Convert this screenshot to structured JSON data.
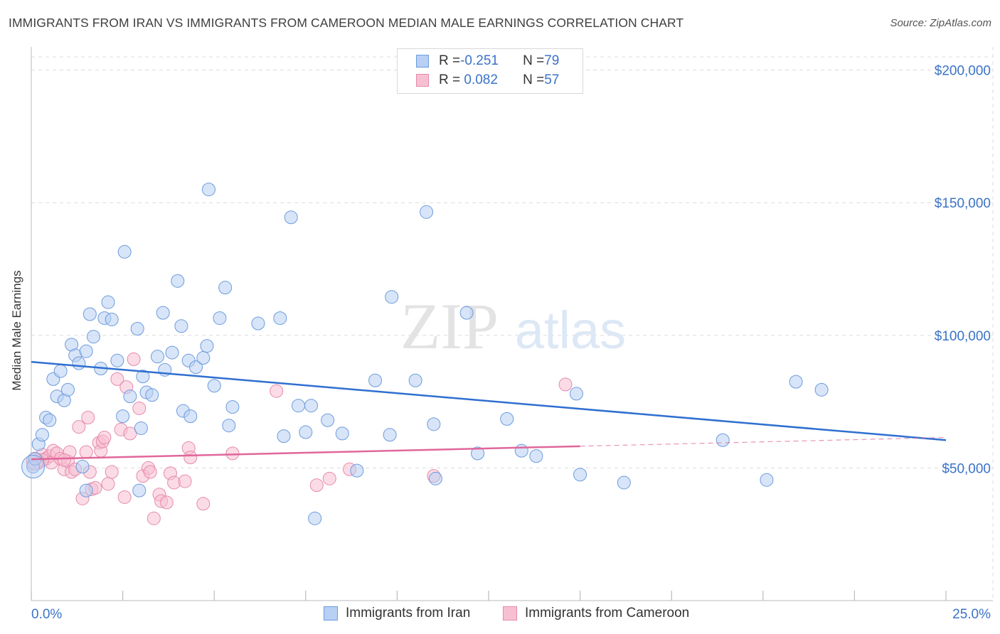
{
  "title": "IMMIGRANTS FROM IRAN VS IMMIGRANTS FROM CAMEROON MEDIAN MALE EARNINGS CORRELATION CHART",
  "source": "Source: ZipAtlas.com",
  "watermark": {
    "zip": "ZIP",
    "atlas": "atlas"
  },
  "legend": {
    "rows": [
      {
        "r_label": "R = ",
        "r_value": "-0.251",
        "n_label": "N = ",
        "n_value": "79"
      },
      {
        "r_label": "R = ",
        "r_value": " 0.082",
        "n_label": "N = ",
        "n_value": "57"
      }
    ]
  },
  "bottom_legend": {
    "iran": "Immigrants from Iran",
    "cameroon": "Immigrants from Cameroon"
  },
  "colors": {
    "iran_fill": "#b8d0f3",
    "iran_stroke": "#6b9bdd",
    "iran_line": "#2f6fd0",
    "cameroon_fill": "#f7c0d2",
    "cameroon_stroke": "#e58aaa",
    "cameroon_line": "#e0679a",
    "axis_text": "#3a73c8",
    "grid": "#dcdcdc"
  },
  "chart_data": {
    "type": "scatter",
    "title": "IMMIGRANTS FROM IRAN VS IMMIGRANTS FROM CAMEROON MEDIAN MALE EARNINGS CORRELATION CHART",
    "xlabel": "",
    "ylabel": "Median Male Earnings",
    "xlim": [
      0,
      25
    ],
    "ylim": [
      0,
      205000
    ],
    "x_tick_labels": [
      "0.0%",
      "25.0%"
    ],
    "y_ticks": [
      50000,
      100000,
      150000,
      200000
    ],
    "y_tick_labels": [
      "$50,000",
      "$100,000",
      "$150,000",
      "$200,000"
    ],
    "grid": true,
    "legend_position": "top-center",
    "series": [
      {
        "name": "Immigrants from Iran",
        "R": -0.251,
        "N": 79,
        "trend": {
          "x0": 0,
          "y0": 90000,
          "x1": 25,
          "y1": 60500
        },
        "points": [
          [
            0.05,
            50500
          ],
          [
            0.1,
            53500
          ],
          [
            0.2,
            59000
          ],
          [
            0.3,
            62500
          ],
          [
            0.4,
            69000
          ],
          [
            0.5,
            68000
          ],
          [
            0.6,
            83500
          ],
          [
            0.7,
            77000
          ],
          [
            0.8,
            86500
          ],
          [
            0.9,
            75500
          ],
          [
            1.0,
            79500
          ],
          [
            1.1,
            96500
          ],
          [
            1.2,
            92500
          ],
          [
            1.3,
            89500
          ],
          [
            1.4,
            50500
          ],
          [
            1.5,
            94000
          ],
          [
            1.6,
            108000
          ],
          [
            1.7,
            99500
          ],
          [
            1.9,
            87500
          ],
          [
            2.0,
            106500
          ],
          [
            2.1,
            112500
          ],
          [
            2.2,
            106000
          ],
          [
            2.35,
            90500
          ],
          [
            2.5,
            69500
          ],
          [
            2.55,
            131500
          ],
          [
            2.7,
            77000
          ],
          [
            2.9,
            102500
          ],
          [
            3.0,
            65000
          ],
          [
            3.05,
            84500
          ],
          [
            3.15,
            78500
          ],
          [
            3.3,
            77500
          ],
          [
            3.45,
            92000
          ],
          [
            3.6,
            108500
          ],
          [
            3.65,
            87000
          ],
          [
            3.85,
            93500
          ],
          [
            4.0,
            120500
          ],
          [
            4.1,
            103500
          ],
          [
            4.15,
            71500
          ],
          [
            4.3,
            90500
          ],
          [
            4.35,
            69500
          ],
          [
            4.5,
            88000
          ],
          [
            4.7,
            91500
          ],
          [
            4.8,
            96000
          ],
          [
            4.85,
            155000
          ],
          [
            5.0,
            81000
          ],
          [
            5.15,
            106500
          ],
          [
            5.3,
            118000
          ],
          [
            5.4,
            66000
          ],
          [
            5.5,
            73000
          ],
          [
            6.2,
            104500
          ],
          [
            6.8,
            106500
          ],
          [
            6.9,
            62000
          ],
          [
            7.1,
            144500
          ],
          [
            7.3,
            73500
          ],
          [
            7.5,
            63500
          ],
          [
            7.65,
            73500
          ],
          [
            7.75,
            31000
          ],
          [
            8.1,
            68000
          ],
          [
            8.5,
            63000
          ],
          [
            8.9,
            49000
          ],
          [
            9.4,
            83000
          ],
          [
            9.8,
            62500
          ],
          [
            9.85,
            114500
          ],
          [
            10.5,
            83000
          ],
          [
            10.8,
            146500
          ],
          [
            11.0,
            66500
          ],
          [
            11.05,
            46000
          ],
          [
            11.9,
            108500
          ],
          [
            12.2,
            55500
          ],
          [
            13.0,
            68500
          ],
          [
            13.4,
            56500
          ],
          [
            13.8,
            54500
          ],
          [
            14.9,
            78000
          ],
          [
            15.0,
            47500
          ],
          [
            16.2,
            44500
          ],
          [
            18.9,
            60500
          ],
          [
            20.1,
            45500
          ],
          [
            20.9,
            82500
          ],
          [
            21.6,
            79500
          ],
          [
            1.5,
            41500
          ],
          [
            2.95,
            41500
          ]
        ]
      },
      {
        "name": "Immigrants from Cameroon",
        "R": 0.082,
        "N": 57,
        "trend": {
          "x0": 0,
          "y0": 53300,
          "x1": 15,
          "y1": 58200
        },
        "trend_dashed_to": {
          "x": 25,
          "y": 61500
        },
        "points": [
          [
            0.05,
            51500
          ],
          [
            0.1,
            53500
          ],
          [
            0.2,
            52000
          ],
          [
            0.3,
            55000
          ],
          [
            0.4,
            53500
          ],
          [
            0.5,
            54500
          ],
          [
            0.55,
            52000
          ],
          [
            0.6,
            56500
          ],
          [
            0.7,
            55500
          ],
          [
            0.8,
            53500
          ],
          [
            0.9,
            49500
          ],
          [
            1.0,
            52500
          ],
          [
            1.05,
            56000
          ],
          [
            1.1,
            48500
          ],
          [
            1.2,
            49500
          ],
          [
            1.3,
            65500
          ],
          [
            1.4,
            38500
          ],
          [
            1.5,
            56000
          ],
          [
            1.55,
            69000
          ],
          [
            1.6,
            48500
          ],
          [
            1.65,
            42000
          ],
          [
            1.75,
            42500
          ],
          [
            1.85,
            59500
          ],
          [
            1.9,
            56500
          ],
          [
            1.95,
            60000
          ],
          [
            2.0,
            61500
          ],
          [
            2.1,
            44000
          ],
          [
            2.2,
            48500
          ],
          [
            2.35,
            83500
          ],
          [
            2.45,
            64500
          ],
          [
            2.55,
            39000
          ],
          [
            2.6,
            80500
          ],
          [
            2.7,
            63000
          ],
          [
            2.8,
            91000
          ],
          [
            2.95,
            72500
          ],
          [
            3.05,
            47000
          ],
          [
            3.2,
            50000
          ],
          [
            3.25,
            48500
          ],
          [
            3.35,
            31000
          ],
          [
            3.5,
            40000
          ],
          [
            3.55,
            37500
          ],
          [
            3.7,
            37000
          ],
          [
            3.8,
            48000
          ],
          [
            3.9,
            44500
          ],
          [
            4.2,
            45000
          ],
          [
            4.3,
            57500
          ],
          [
            4.35,
            54000
          ],
          [
            4.7,
            36500
          ],
          [
            5.5,
            55500
          ],
          [
            6.7,
            79000
          ],
          [
            7.8,
            43500
          ],
          [
            8.15,
            46000
          ],
          [
            8.7,
            49500
          ],
          [
            11.0,
            47000
          ],
          [
            14.6,
            81500
          ],
          [
            0.3,
            53000
          ],
          [
            0.9,
            53000
          ]
        ]
      }
    ]
  }
}
